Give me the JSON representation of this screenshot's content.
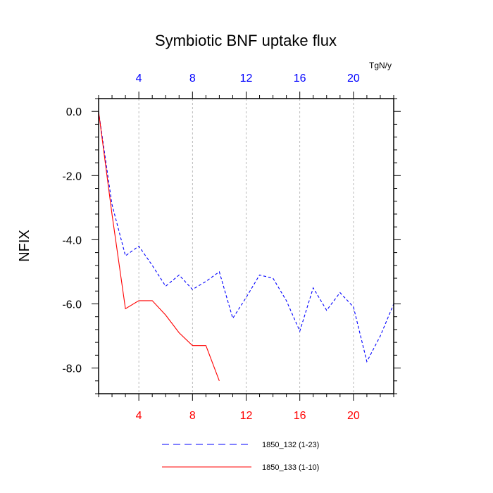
{
  "chart_data": {
    "type": "line",
    "title": "Symbiotic BNF uptake flux",
    "ylabel": "NFIX",
    "units": "TgN/y",
    "xlim": [
      1,
      23
    ],
    "ylim": [
      -8.8,
      0.4
    ],
    "x_ticks": [
      4,
      8,
      12,
      16,
      20
    ],
    "x_tick_labels": [
      "4",
      "8",
      "12",
      "16",
      "20"
    ],
    "y_ticks": [
      0,
      -2,
      -4,
      -6,
      -8
    ],
    "y_tick_labels": [
      "0.0",
      "-2.0",
      "-4.0",
      "-6.0",
      "-8.0"
    ],
    "grid": "vertical-dashed",
    "legend_position": "bottom",
    "colors": {
      "top_axis": "#0000ff",
      "bottom_axis": "#ff0000"
    },
    "series": [
      {
        "name": "1850_132 (1-23)",
        "color": "#0000ff",
        "style": "dashed",
        "x": [
          1,
          2,
          3,
          4,
          5,
          6,
          7,
          8,
          9,
          10,
          11,
          12,
          13,
          14,
          15,
          16,
          17,
          18,
          19,
          20,
          21,
          22,
          23
        ],
        "y": [
          0,
          -2.9,
          -4.5,
          -4.2,
          -4.8,
          -5.45,
          -5.1,
          -5.55,
          -5.3,
          -5.0,
          -6.45,
          -5.8,
          -5.1,
          -5.2,
          -5.9,
          -6.85,
          -5.5,
          -6.2,
          -5.65,
          -6.1,
          -7.8,
          -7.0,
          -6.0
        ]
      },
      {
        "name": "1850_133 (1-10)",
        "color": "#ff0000",
        "style": "solid",
        "x": [
          1,
          2,
          3,
          4,
          5,
          6,
          7,
          8,
          9,
          10
        ],
        "y": [
          0,
          -3.2,
          -6.15,
          -5.9,
          -5.9,
          -6.35,
          -6.9,
          -7.3,
          -7.3,
          -8.4
        ]
      }
    ]
  }
}
